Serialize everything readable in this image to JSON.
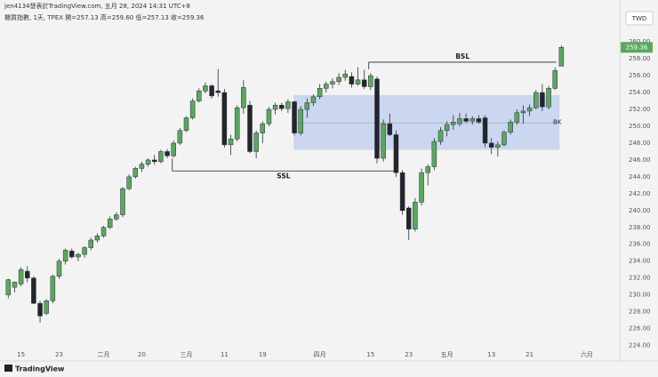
{
  "header": {
    "line1": "jen4134發表於TradingView.com, 五月 28, 2024 14:31 UTC+8",
    "line2": "櫃買指數, 1天, TPEX  開=257.13  高=259.60  低=257.13  收=259.36"
  },
  "currency": "TWD",
  "brand": "TradingView",
  "chart_data": {
    "type": "candlestick",
    "categories": [
      null,
      null,
      "15",
      null,
      null,
      null,
      null,
      null,
      "23",
      null,
      null,
      null,
      null,
      null,
      null,
      "二月",
      null,
      null,
      null,
      null,
      null,
      "20",
      null,
      null,
      null,
      null,
      null,
      null,
      "三月",
      null,
      null,
      null,
      null,
      null,
      "11",
      null,
      null,
      null,
      null,
      null,
      "19",
      null,
      null,
      null,
      null,
      null,
      null,
      null,
      null,
      "四月",
      null,
      null,
      null,
      null,
      null,
      null,
      null,
      "15",
      null,
      null,
      null,
      null,
      null,
      "23",
      null,
      null,
      null,
      null,
      null,
      "五月",
      null,
      null,
      null,
      null,
      null,
      null,
      "13",
      null,
      null,
      null,
      null,
      null,
      "21",
      null,
      null,
      null,
      null,
      null,
      null,
      null,
      null,
      "六月"
    ],
    "open": [
      230.0,
      230.9,
      231.3,
      232.8,
      232.0,
      229.0,
      227.8,
      229.3,
      232.2,
      234.0,
      235.2,
      234.5,
      234.8,
      235.6,
      236.5,
      237.0,
      238.0,
      239.0,
      239.5,
      242.6,
      244.0,
      245.0,
      245.5,
      246.0,
      245.8,
      247.0,
      246.5,
      248.0,
      249.5,
      251.0,
      253.0,
      254.2,
      254.8,
      254.2,
      254.0,
      247.8,
      248.5,
      252.2,
      252.5,
      247.0,
      249.2,
      250.3,
      252.0,
      252.5,
      252.1,
      252.9,
      249.2,
      252.0,
      252.8,
      253.5,
      254.5,
      255.0,
      255.3,
      255.8,
      255.9,
      255.0,
      255.5,
      254.7,
      255.6,
      246.2,
      250.3,
      249.0,
      244.5,
      240.3,
      237.8,
      241.0,
      244.5,
      245.2,
      248.2,
      249.5,
      250.2,
      250.3,
      250.9,
      250.6,
      250.9,
      251.0,
      248.0,
      247.5,
      247.8,
      249.3,
      250.5,
      251.6,
      251.8,
      252.2,
      254.0,
      252.3,
      254.5,
      257.13,
      null,
      null,
      null,
      null
    ],
    "high": [
      231.9,
      231.6,
      233.3,
      233.4,
      232.2,
      229.3,
      229.5,
      232.4,
      234.3,
      235.5,
      235.5,
      235.0,
      235.8,
      236.8,
      237.3,
      238.2,
      239.3,
      239.8,
      242.8,
      244.3,
      245.2,
      245.8,
      246.2,
      246.6,
      247.2,
      247.3,
      248.3,
      249.8,
      251.2,
      253.3,
      254.5,
      255.2,
      255.0,
      256.8,
      254.4,
      249.0,
      252.5,
      255.5,
      253.0,
      249.5,
      250.6,
      252.3,
      252.8,
      252.8,
      253.2,
      253.0,
      252.4,
      253.3,
      253.8,
      255.0,
      255.3,
      255.7,
      256.3,
      256.7,
      256.4,
      257.0,
      256.7,
      256.3,
      255.9,
      250.8,
      251.5,
      249.5,
      244.8,
      240.5,
      241.5,
      245.0,
      245.5,
      248.6,
      249.9,
      250.6,
      251.3,
      251.6,
      251.5,
      251.2,
      251.3,
      251.3,
      248.6,
      248.2,
      249.5,
      250.8,
      252.0,
      252.5,
      252.6,
      254.3,
      255.0,
      254.8,
      257.0,
      259.6,
      null,
      null,
      null,
      null
    ],
    "low": [
      229.6,
      230.3,
      231.0,
      231.5,
      228.9,
      226.7,
      227.6,
      229.0,
      231.9,
      233.6,
      234.3,
      234.0,
      234.4,
      235.3,
      236.2,
      236.8,
      237.8,
      238.8,
      239.2,
      242.4,
      243.8,
      244.6,
      245.2,
      245.4,
      245.6,
      246.2,
      246.3,
      247.8,
      249.3,
      250.8,
      252.8,
      253.9,
      253.3,
      253.5,
      247.5,
      246.6,
      248.2,
      251.5,
      246.8,
      246.2,
      248.0,
      250.0,
      251.4,
      251.8,
      251.6,
      248.9,
      248.9,
      251.0,
      252.4,
      253.2,
      254.0,
      254.5,
      254.9,
      255.4,
      254.6,
      254.8,
      254.4,
      254.3,
      245.6,
      245.8,
      248.8,
      244.0,
      239.5,
      236.5,
      237.5,
      240.6,
      243.0,
      244.8,
      247.8,
      248.8,
      249.6,
      250.0,
      250.4,
      250.2,
      250.3,
      247.5,
      246.7,
      246.4,
      247.6,
      249.0,
      250.2,
      250.3,
      251.2,
      252.0,
      251.8,
      252.0,
      254.3,
      257.13,
      null,
      null,
      null,
      null
    ],
    "close": [
      231.8,
      231.5,
      233.0,
      232.0,
      229.0,
      227.5,
      229.3,
      232.2,
      234.0,
      235.3,
      234.5,
      234.8,
      235.6,
      236.5,
      237.0,
      238.0,
      239.0,
      239.5,
      242.6,
      244.0,
      245.0,
      245.5,
      246.0,
      245.8,
      247.0,
      246.5,
      248.0,
      249.5,
      251.0,
      253.0,
      254.2,
      254.8,
      253.6,
      254.0,
      247.8,
      248.5,
      252.2,
      254.6,
      247.0,
      249.2,
      250.3,
      252.0,
      252.5,
      252.1,
      252.9,
      249.2,
      252.0,
      252.8,
      253.5,
      254.5,
      255.0,
      255.3,
      255.8,
      256.2,
      255.0,
      255.5,
      254.7,
      256.0,
      246.2,
      250.3,
      249.0,
      244.5,
      240.0,
      237.8,
      241.0,
      244.5,
      245.2,
      248.2,
      249.5,
      250.2,
      250.5,
      250.9,
      250.6,
      250.9,
      250.5,
      248.0,
      247.5,
      247.8,
      249.3,
      250.5,
      251.6,
      251.8,
      252.2,
      254.0,
      252.3,
      254.5,
      256.6,
      259.36,
      null,
      null,
      null,
      null
    ],
    "up_color": "#5aa85e",
    "down_color": "#22252b",
    "ylim": [
      223,
      263.5
    ],
    "yticks": [
      {
        "value": 224,
        "label": "224.00"
      },
      {
        "value": 226,
        "label": "226.00"
      },
      {
        "value": 228,
        "label": "228.00"
      },
      {
        "value": 230,
        "label": "230.00"
      },
      {
        "value": 232,
        "label": "232.00"
      },
      {
        "value": 234,
        "label": "234.00"
      },
      {
        "value": 236,
        "label": "236.00"
      },
      {
        "value": 238,
        "label": "238.00"
      },
      {
        "value": 240,
        "label": "240.00"
      },
      {
        "value": 242,
        "label": "242.00"
      },
      {
        "value": 244,
        "label": "244.00"
      },
      {
        "value": 246,
        "label": "246.00"
      },
      {
        "value": 248,
        "label": "248.00"
      },
      {
        "value": 250,
        "label": "250.00"
      },
      {
        "value": 252,
        "label": "252.00"
      },
      {
        "value": 254,
        "label": "254.00"
      },
      {
        "value": 256,
        "label": "256.00"
      },
      {
        "value": 258,
        "label": "258.00"
      },
      {
        "value": 260,
        "label": "260.00"
      }
    ],
    "grid": false,
    "zone": {
      "x": [
        44.9,
        86.7
      ],
      "y": [
        247.2,
        253.7
      ],
      "mid": 250.4,
      "color": "#c3d0ef"
    },
    "annotations": [
      {
        "text": "BSL",
        "x": [
          56.7,
          86.2
        ],
        "y": 257.6
      },
      {
        "text": "SSL",
        "x": [
          25.8,
          60.8
        ],
        "y": 244.7
      },
      {
        "text": "BK",
        "x": [
          85.7
        ],
        "y": 250.5
      }
    ]
  }
}
